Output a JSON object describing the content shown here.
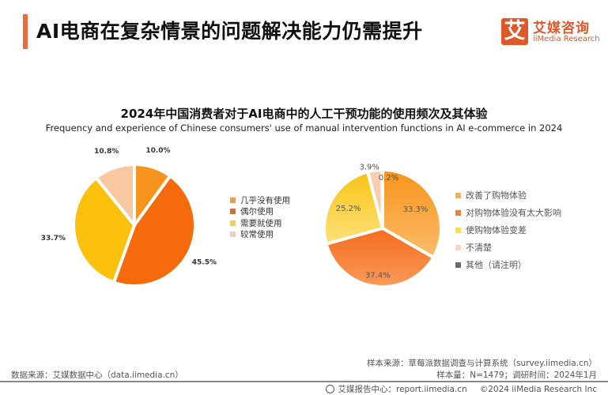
{
  "header": {
    "title": "AI电商在复杂情景的问题解决能力仍需提升",
    "accent_color": "#ee6a3a",
    "logo": {
      "mark": "艾",
      "name_cn": "艾媒咨询",
      "name_en": "iiMedia Research",
      "color": "#e0572a"
    }
  },
  "chart": {
    "title": "2024年中国消费者对于AI电商中的人工干预功能的使用频次及其体验",
    "subtitle": "Frequency and experience of Chinese consumers' use of manual intervention functions in AI e-commerce in 2024"
  },
  "chart_data": [
    {
      "type": "pie",
      "title": "使用频次",
      "categories": [
        "几乎没有使用",
        "偶尔使用",
        "需要就使用",
        "较常使用"
      ],
      "values": [
        10.0,
        45.5,
        33.7,
        10.8
      ],
      "labels": [
        "10.0%",
        "45.5%",
        "33.7%",
        "10.8%"
      ],
      "colors": [
        "#f7941d",
        "#f56a0a",
        "#fcc10d",
        "#f9c8a0"
      ],
      "legend_position": "right",
      "start_angle": "12 o'clock, clockwise"
    },
    {
      "type": "pie",
      "title": "体验",
      "categories": [
        "改善了购物体验",
        "对购物体验没有太大影响",
        "使购物体验变差",
        "不清楚",
        "其他（请注明）"
      ],
      "values": [
        33.3,
        37.4,
        25.2,
        3.9,
        0.2
      ],
      "labels": [
        "33.3%",
        "37.4%",
        "25.2%",
        "3.9%",
        "0.2%"
      ],
      "colors": [
        "#f9a63a",
        "#f7803a",
        "#f9cf3c",
        "#f6cdb3",
        "#5b5b5b"
      ],
      "legend_position": "right",
      "start_angle": "12 o'clock, clockwise"
    }
  ],
  "footer": {
    "source_left": "数据来源：艾媒数据中心（data.iimedia.cn）",
    "sample_source": "样本来源：草莓派数据调查与计算系统（survey.iimedia.cn）",
    "sample_info": "样本量：N=1479；调研时间：2024年1月",
    "report_center": "艾媒报告中心：report.iimedia.cn",
    "copyright": "©2024  iiMedia Research  Inc"
  }
}
